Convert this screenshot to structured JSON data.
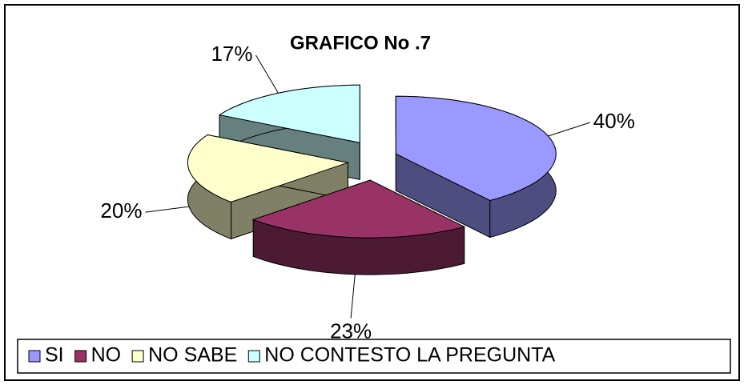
{
  "chart_data": {
    "type": "pie",
    "title": "GRAFICO No .7",
    "categories": [
      "SI",
      "NO",
      "NO SABE",
      "NO CONTESTO LA PREGUNTA"
    ],
    "values": [
      40,
      23,
      20,
      17
    ],
    "value_labels": [
      "40%",
      "23%",
      "20%",
      "17%"
    ],
    "colors": [
      "#9999ff",
      "#993366",
      "#ffffcc",
      "#ccffff"
    ],
    "legend": "bottom"
  }
}
